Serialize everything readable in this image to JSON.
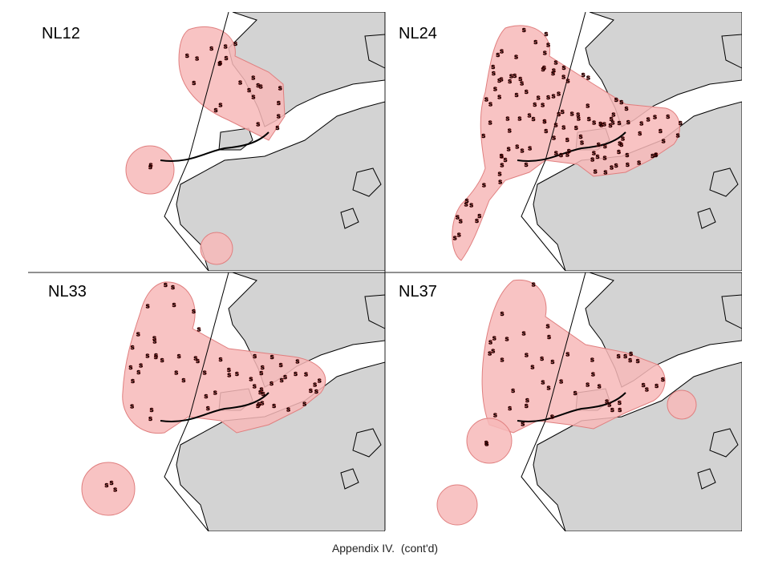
{
  "panels": [
    {
      "label": "NL12"
    },
    {
      "label": "NL24"
    },
    {
      "label": "NL33"
    },
    {
      "label": "NL37"
    }
  ],
  "marker_symbol": "s",
  "caption": "Appendix IV.  (cont'd)"
}
